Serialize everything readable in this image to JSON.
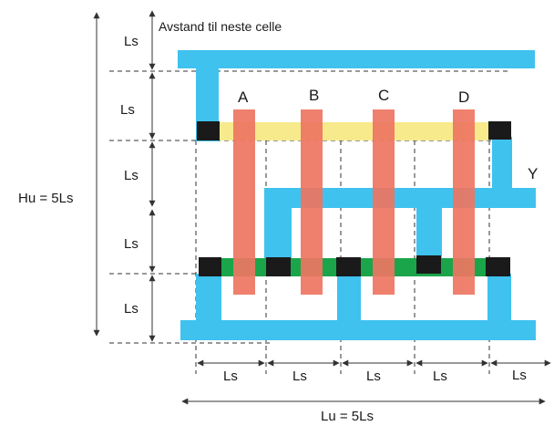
{
  "colors": {
    "metal": "#3fc2ee",
    "poly": "#ee7662",
    "green_rail": "#1aa54a",
    "yellow_rail": "#f7ea8c",
    "contact": "#1a1a1a",
    "dimension": "#333333"
  },
  "labels": {
    "next_cell": "Avstand til neste celle",
    "ls": "Ls",
    "height": "Hu = 5Ls",
    "width": "Lu = 5Ls",
    "gate_a": "A",
    "gate_b": "B",
    "gate_c": "C",
    "gate_d": "D",
    "output_y": "Y"
  }
}
